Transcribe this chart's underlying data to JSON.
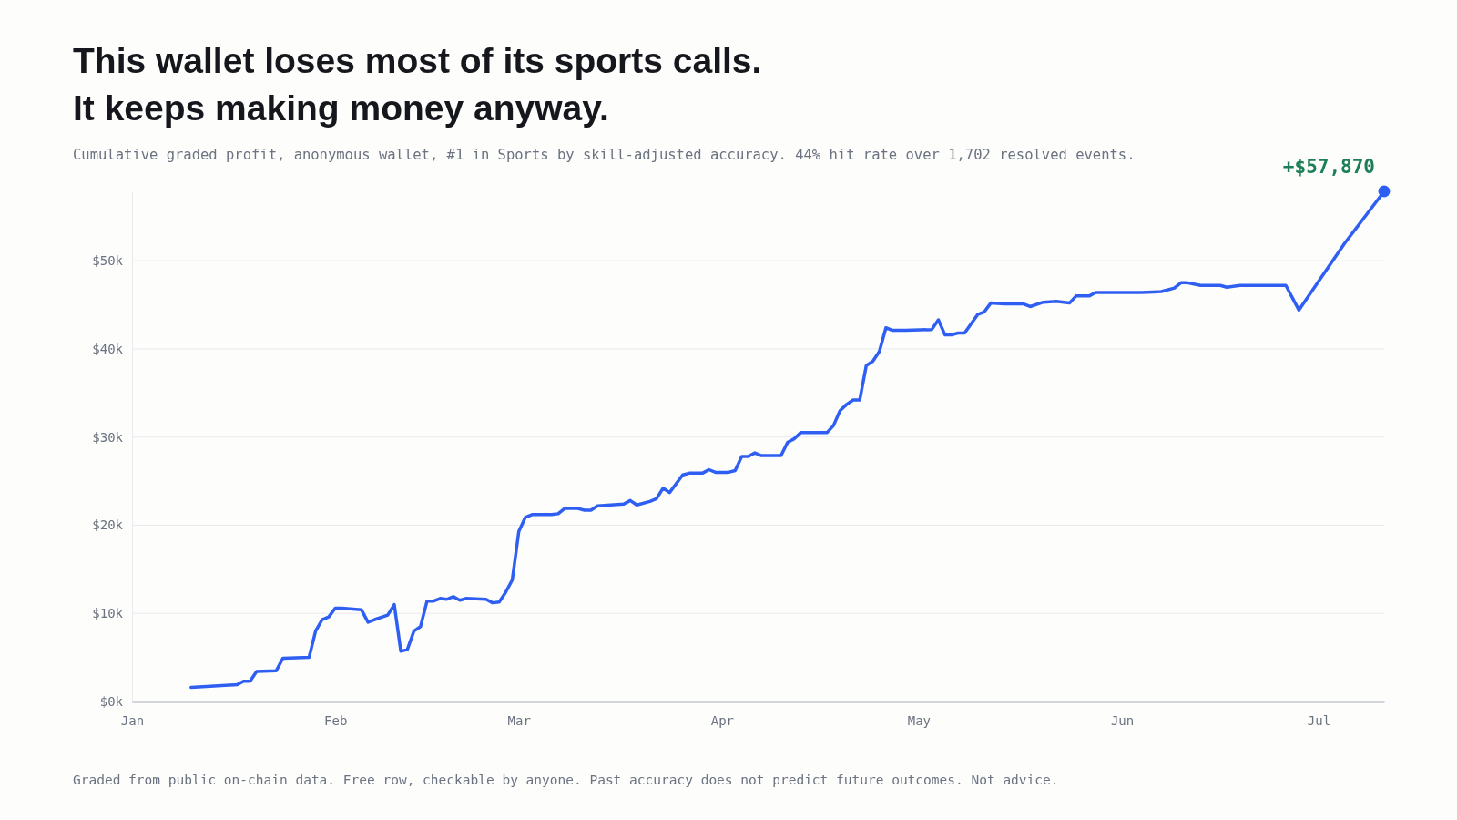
{
  "chart_data": {
    "type": "line",
    "title": "This wallet loses most of its sports calls.\nIt keeps making money anyway.",
    "subtitle": "Cumulative graded profit, anonymous wallet, #1 in Sports by skill-adjusted accuracy. 44% hit rate over 1,702 resolved events.",
    "x": [
      "--01-10",
      "--01-17",
      "--01-18",
      "--01-19",
      "--01-20",
      "--01-23",
      "--01-24",
      "--01-28",
      "--01-29",
      "--01-30",
      "--01-31",
      "--02-01",
      "--02-02",
      "--02-05",
      "--02-06",
      "--02-07",
      "--02-09",
      "--02-10",
      "--02-11",
      "--02-12",
      "--02-13",
      "--02-14",
      "--02-15",
      "--02-16",
      "--02-17",
      "--02-18",
      "--02-19",
      "--02-20",
      "--02-21",
      "--02-24",
      "--02-25",
      "--02-26",
      "--02-27",
      "--02-28",
      "--03-01",
      "--03-02",
      "--03-03",
      "--03-06",
      "--03-07",
      "--03-08",
      "--03-10",
      "--03-11",
      "--03-12",
      "--03-13",
      "--03-15",
      "--03-17",
      "--03-18",
      "--03-19",
      "--03-21",
      "--03-22",
      "--03-23",
      "--03-24",
      "--03-26",
      "--03-27",
      "--03-29",
      "--03-30",
      "--03-31",
      "--04-02",
      "--04-03",
      "--04-04",
      "--04-05",
      "--04-06",
      "--04-07",
      "--04-10",
      "--04-11",
      "--04-12",
      "--04-13",
      "--04-17",
      "--04-18",
      "--04-19",
      "--04-20",
      "--04-21",
      "--04-22",
      "--04-23",
      "--04-24",
      "--04-25",
      "--04-26",
      "--04-27",
      "--04-29",
      "--05-03",
      "--05-04",
      "--05-05",
      "--05-06",
      "--05-07",
      "--05-08",
      "--05-10",
      "--05-11",
      "--05-12",
      "--05-14",
      "--05-17",
      "--05-18",
      "--05-20",
      "--05-22",
      "--05-24",
      "--05-25",
      "--05-27",
      "--05-28",
      "--06-04",
      "--06-07",
      "--06-09",
      "--06-10",
      "--06-11",
      "--06-13",
      "--06-16",
      "--06-17",
      "--06-19",
      "--06-26",
      "--06-28",
      "--07-05",
      "--07-11"
    ],
    "series": [
      {
        "color": "#2f5ff2",
        "values": [
          1.6,
          1.9,
          2.3,
          2.3,
          3.4,
          3.5,
          4.9,
          5.0,
          8.0,
          9.3,
          9.6,
          10.6,
          10.6,
          10.4,
          9.0,
          9.3,
          9.8,
          11.0,
          5.7,
          5.9,
          8.0,
          8.5,
          11.4,
          11.4,
          11.7,
          11.6,
          11.9,
          11.5,
          11.7,
          11.6,
          11.2,
          11.3,
          12.4,
          13.8,
          19.3,
          20.9,
          21.2,
          21.2,
          21.3,
          21.9,
          21.9,
          21.7,
          21.7,
          22.2,
          22.3,
          22.4,
          22.8,
          22.3,
          22.7,
          23.0,
          24.2,
          23.7,
          25.7,
          25.9,
          25.9,
          26.3,
          26.0,
          26.0,
          26.2,
          27.8,
          27.8,
          28.2,
          27.9,
          27.9,
          29.4,
          29.8,
          30.5,
          30.5,
          31.3,
          33.0,
          33.7,
          34.2,
          34.2,
          38.1,
          38.6,
          39.7,
          42.4,
          42.1,
          42.1,
          42.2,
          43.3,
          41.6,
          41.6,
          41.8,
          41.8,
          43.9,
          44.2,
          45.2,
          45.1,
          45.1,
          44.8,
          45.3,
          45.4,
          45.2,
          46.0,
          46.0,
          46.4,
          46.4,
          46.5,
          46.9,
          47.5,
          47.5,
          47.2,
          47.2,
          47.0,
          47.2,
          47.2,
          44.4,
          52.0,
          57.87
        ]
      }
    ],
    "xlim": [
      "--01-01",
      "--07-11"
    ],
    "xticks": [
      {
        "value": "--01-01",
        "label": "Jan"
      },
      {
        "value": "--02-01",
        "label": "Feb"
      },
      {
        "value": "--03-01",
        "label": "Mar"
      },
      {
        "value": "--04-01",
        "label": "Apr"
      },
      {
        "value": "--05-01",
        "label": "May"
      },
      {
        "value": "--06-01",
        "label": "Jun"
      },
      {
        "value": "--07-01",
        "label": "Jul"
      }
    ],
    "ylim": [
      0,
      57.87
    ],
    "yticks": [
      {
        "value": 0,
        "label": "$0k"
      },
      {
        "value": 10,
        "label": "$10k"
      },
      {
        "value": 20,
        "label": "$20k"
      },
      {
        "value": 30,
        "label": "$30k"
      },
      {
        "value": 40,
        "label": "$40k"
      },
      {
        "value": 50,
        "label": "$50k"
      }
    ],
    "grid": "y",
    "marker": "none",
    "line_style": "solid",
    "annotations": [
      {
        "text": "+$57,870",
        "x": "--07-11",
        "y": 57.87
      },
      "Graded from public on-chain data. Free row, checkable by anyone. Past accuracy does not predict future outcomes. Not advice."
    ]
  }
}
